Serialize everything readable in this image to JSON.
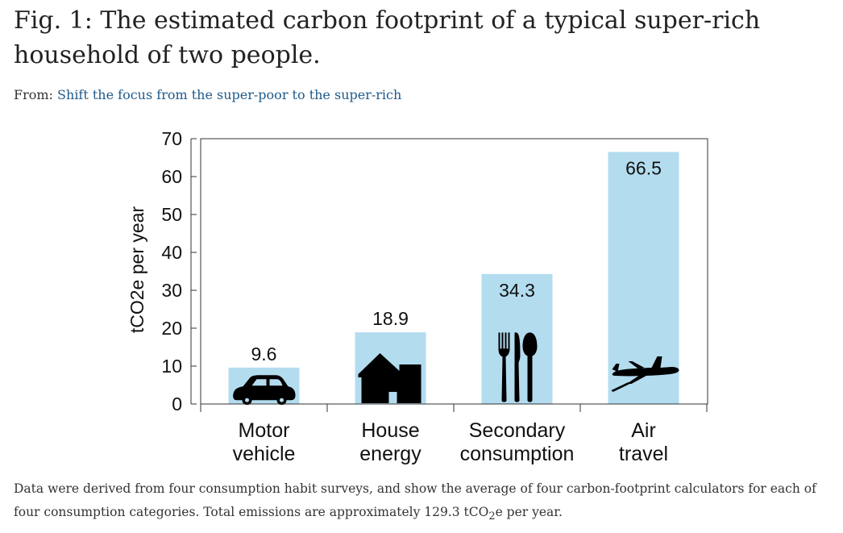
{
  "page": {
    "title": "Fig. 1: The estimated carbon footprint of a typical super-rich household of two people.",
    "source_prefix": "From:",
    "source_link": "Shift the focus from the super-poor to the super-rich",
    "caption_part1": "Data were derived from four consumption habit surveys, and show the average of four carbon-footprint calculators for each of four consumption categories. Total emissions are approximately 129.3 tCO",
    "caption_sub": "2",
    "caption_part2": "e per year.",
    "colors": {
      "bar": "#b3dcef",
      "text": "#222222",
      "link": "#1f5a8a"
    }
  },
  "chart_data": {
    "type": "bar",
    "categories": [
      {
        "line1": "Motor",
        "line2": "vehicle",
        "icon": "car-icon"
      },
      {
        "line1": "House",
        "line2": "energy",
        "icon": "house-icon"
      },
      {
        "line1": "Secondary",
        "line2": "consumption",
        "icon": "cutlery-icon"
      },
      {
        "line1": "Air",
        "line2": "travel",
        "icon": "airplane-icon"
      }
    ],
    "values": [
      9.6,
      18.9,
      34.3,
      66.5
    ],
    "value_labels": [
      "9.6",
      "18.9",
      "34.3",
      "66.5"
    ],
    "ylabel": "tCO2e per year",
    "ylim": [
      0,
      70
    ],
    "yticks": [
      0,
      10,
      20,
      30,
      40,
      50,
      60,
      70
    ],
    "grid": false,
    "legend": "none"
  }
}
